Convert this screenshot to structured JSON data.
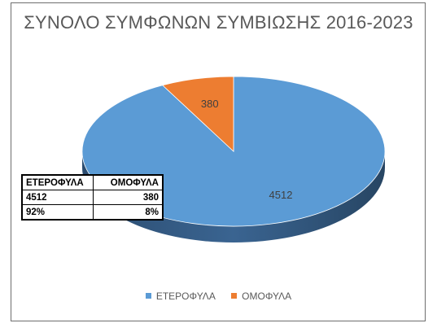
{
  "chart_data": {
    "type": "pie",
    "title": "ΣΥΝΟΛΟ ΣΥΜΦΩΝΩΝ ΣΥΜΒΙΩΣΗΣ 2016-2023",
    "categories": [
      "ΕΤΕΡΟΦΥΛΑ",
      "ΟΜΟΦΥΛΑ"
    ],
    "values": [
      4512,
      380
    ],
    "data_labels": [
      "4512",
      "380"
    ],
    "colors": [
      "#5b9bd5",
      "#ed7d31"
    ],
    "style": "3d",
    "legend_position": "bottom",
    "table": {
      "headers": [
        "ΕΤΕΡΟΦΥΛΑ",
        "ΟΜΟΦΥΛΑ"
      ],
      "rows": [
        [
          "4512",
          "380"
        ],
        [
          "92%",
          "8%"
        ]
      ]
    }
  }
}
